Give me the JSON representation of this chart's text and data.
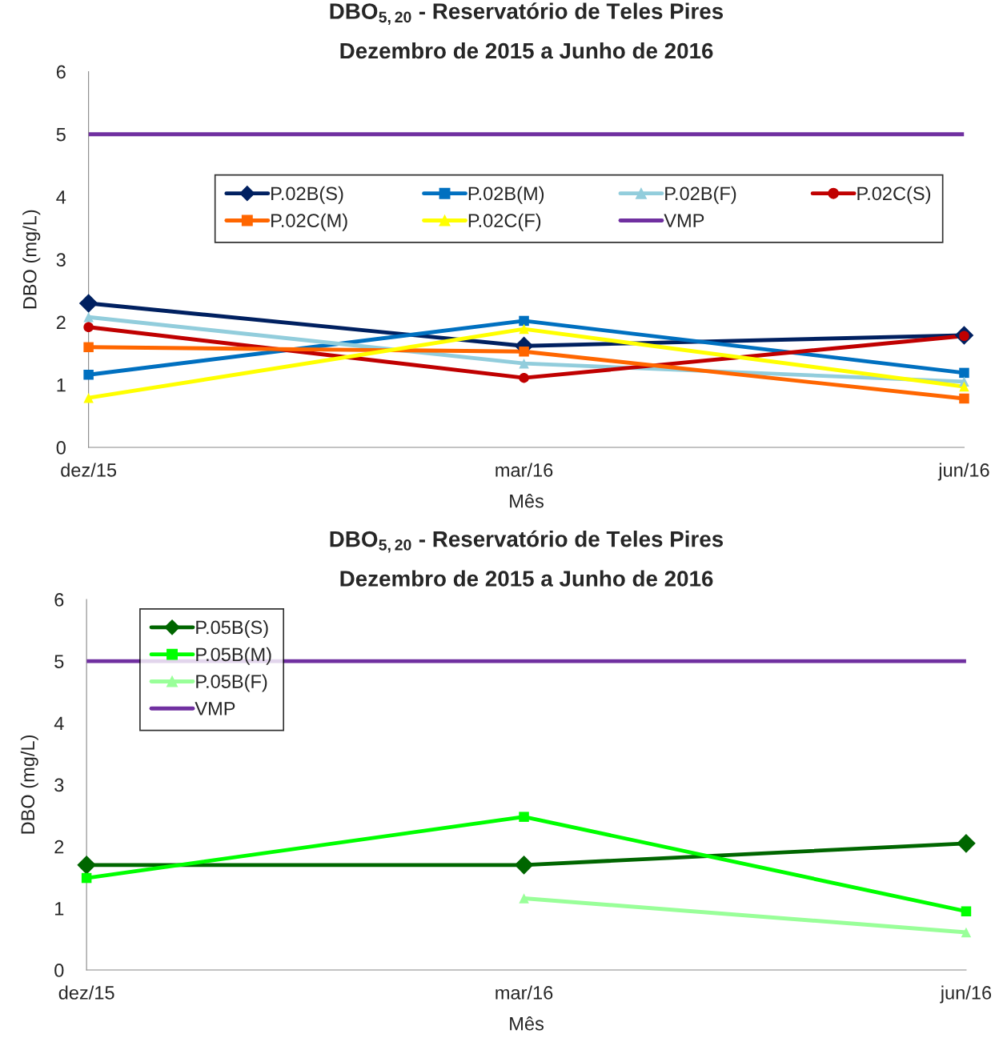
{
  "chart_data": [
    {
      "type": "line",
      "title": "DBO$_{5,20}$ - Reservatório de Teles Pires",
      "subtitle": "Dezembro de 2015 a Junho de 2016",
      "xlabel": "Mês",
      "ylabel": "DBO (mg/L)",
      "x": [
        "2015-12",
        "2016-03",
        "2016-06"
      ],
      "xlim": [
        "2015-12",
        "2016-06"
      ],
      "xticks": [
        {
          "value": "2015-12",
          "label": "dez/15"
        },
        {
          "value": "2016-03",
          "label": "mar/16"
        },
        {
          "value": "2016-06",
          "label": "jun/16"
        }
      ],
      "ylim": [
        0,
        6
      ],
      "yticks": [
        0,
        1,
        2,
        3,
        4,
        5,
        6
      ],
      "grid": false,
      "legend": "top",
      "series": [
        {
          "name": "P.02B(S)",
          "color": "#002060",
          "marker": "diamond",
          "values": [
            2.3,
            1.62,
            1.79
          ]
        },
        {
          "name": "P.02B(M)",
          "color": "#0070c0",
          "marker": "square",
          "values": [
            1.16,
            2.02,
            1.19
          ]
        },
        {
          "name": "P.02B(F)",
          "color": "#92cddc",
          "marker": "triangle",
          "values": [
            2.08,
            1.34,
            1.05
          ]
        },
        {
          "name": "P.02C(S)",
          "color": "#c00000",
          "marker": "circle",
          "values": [
            1.92,
            1.11,
            1.78
          ]
        },
        {
          "name": "P.02C(M)",
          "color": "#ff6600",
          "marker": "square",
          "values": [
            1.6,
            1.53,
            0.78
          ]
        },
        {
          "name": "P.02C(F)",
          "color": "#ffff00",
          "marker": "triangle",
          "values": [
            0.79,
            1.89,
            0.97
          ]
        },
        {
          "name": "VMP",
          "color": "#7030a0",
          "marker": "none",
          "values": [
            5,
            5,
            5
          ]
        }
      ]
    },
    {
      "type": "line",
      "title": "DBO$_{5,20}$ - Reservatório de Teles Pires",
      "subtitle": "Dezembro de 2015 a Junho de 2016",
      "xlabel": "Mês",
      "ylabel": "DBO (mg/L)",
      "x": [
        "2015-12",
        "2016-03",
        "2016-06"
      ],
      "xlim": [
        "2015-12",
        "2016-06"
      ],
      "xticks": [
        {
          "value": "2015-12",
          "label": "dez/15"
        },
        {
          "value": "2016-03",
          "label": "mar/16"
        },
        {
          "value": "2016-06",
          "label": "jun/16"
        }
      ],
      "ylim": [
        0,
        6
      ],
      "yticks": [
        0,
        1,
        2,
        3,
        4,
        5,
        6
      ],
      "grid": false,
      "legend": "top left",
      "series": [
        {
          "name": "P.05B(S)",
          "color": "#006600",
          "marker": "diamond",
          "values": [
            1.7,
            1.7,
            2.05
          ]
        },
        {
          "name": "P.05B(M)",
          "color": "#00ff00",
          "marker": "square",
          "values": [
            1.49,
            2.48,
            0.95
          ]
        },
        {
          "name": "P.05B(F)",
          "color": "#99ff99",
          "marker": "triangle",
          "values": [
            null,
            1.16,
            0.61
          ]
        },
        {
          "name": "VMP",
          "color": "#7030a0",
          "marker": "none",
          "values": [
            5,
            5,
            5
          ]
        }
      ]
    }
  ]
}
